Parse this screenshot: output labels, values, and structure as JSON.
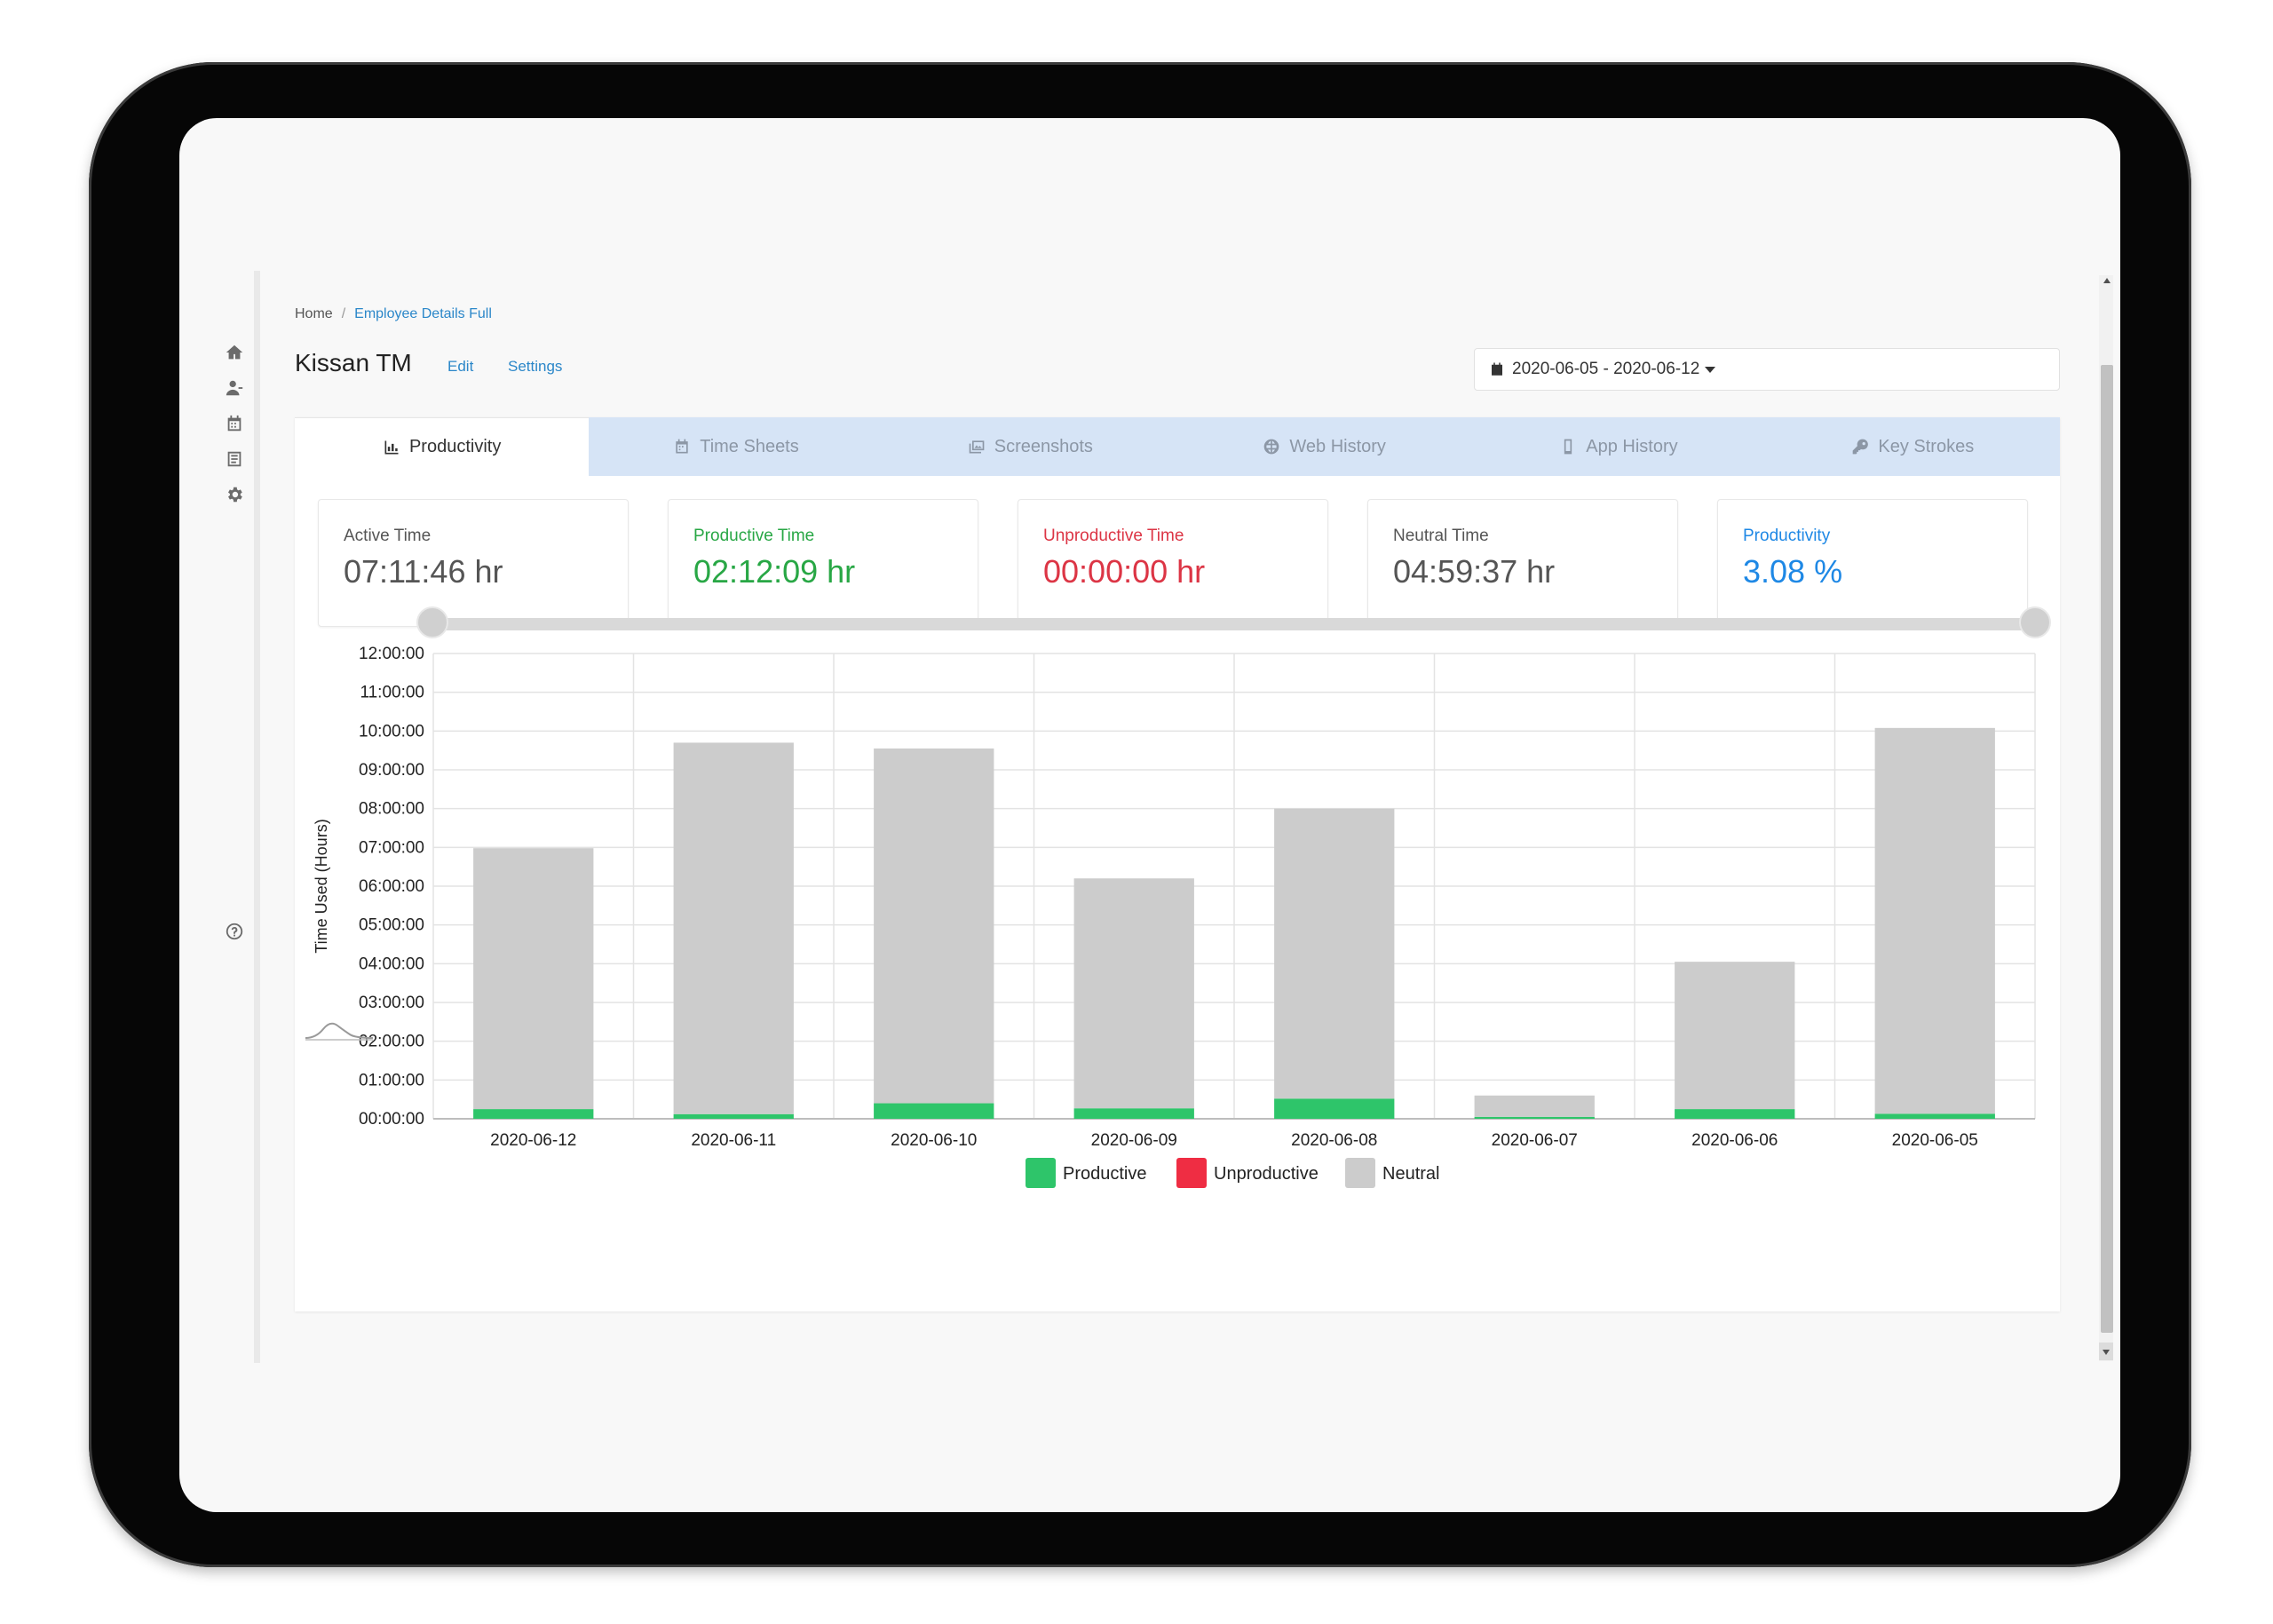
{
  "breadcrumb": {
    "home": "Home",
    "separator": "/",
    "current": "Employee Details Full"
  },
  "employee": {
    "name": "Kissan TM",
    "edit_label": "Edit",
    "settings_label": "Settings"
  },
  "date_range": {
    "icon": "calendar-icon",
    "label": "2020-06-05 - 2020-06-12"
  },
  "sidebar": {
    "items": [
      {
        "icon": "home-icon"
      },
      {
        "icon": "users-icon"
      },
      {
        "icon": "calendar-icon"
      },
      {
        "icon": "report-icon"
      },
      {
        "icon": "gear-icon"
      }
    ],
    "help_icon": "help-icon"
  },
  "tabs": [
    {
      "label": "Productivity",
      "icon": "bar-chart-icon",
      "active": true
    },
    {
      "label": "Time Sheets",
      "icon": "calendar-icon",
      "active": false
    },
    {
      "label": "Screenshots",
      "icon": "images-icon",
      "active": false
    },
    {
      "label": "Web History",
      "icon": "globe-icon",
      "active": false
    },
    {
      "label": "App History",
      "icon": "mobile-icon",
      "active": false
    },
    {
      "label": "Key Strokes",
      "icon": "key-icon",
      "active": false
    }
  ],
  "stats": [
    {
      "label": "Active Time",
      "value": "07:11:46 hr",
      "color": "#555555"
    },
    {
      "label": "Productive Time",
      "value": "02:12:09 hr",
      "color": "#28a745"
    },
    {
      "label": "Unproductive Time",
      "value": "00:00:00 hr",
      "color": "#dc3545"
    },
    {
      "label": "Neutral Time",
      "value": "04:59:37 hr",
      "color": "#555555"
    },
    {
      "label": "Productivity",
      "value": "3.08 %",
      "color": "#1e88e5"
    }
  ],
  "chart_data": {
    "type": "bar",
    "stacked": true,
    "title": "",
    "xlabel": "",
    "ylabel": "Time Used (Hours)",
    "ylim": [
      0,
      12
    ],
    "yticks": [
      "00:00:00",
      "01:00:00",
      "02:00:00",
      "03:00:00",
      "04:00:00",
      "05:00:00",
      "06:00:00",
      "07:00:00",
      "08:00:00",
      "09:00:00",
      "10:00:00",
      "11:00:00",
      "12:00:00"
    ],
    "categories": [
      "2020-06-12",
      "2020-06-11",
      "2020-06-10",
      "2020-06-09",
      "2020-06-08",
      "2020-06-07",
      "2020-06-06",
      "2020-06-05"
    ],
    "series": [
      {
        "name": "Productive",
        "color": "#2ec56a",
        "values": [
          0.25,
          0.12,
          0.4,
          0.27,
          0.52,
          0.05,
          0.25,
          0.13
        ]
      },
      {
        "name": "Unproductive",
        "color": "#ef2d43",
        "values": [
          0,
          0,
          0,
          0,
          0,
          0,
          0,
          0
        ]
      },
      {
        "name": "Neutral",
        "color": "#cccccc",
        "values": [
          6.73,
          9.58,
          9.15,
          5.93,
          7.48,
          0.55,
          3.8,
          9.95
        ]
      }
    ],
    "grid": true,
    "legend": "bottom-center"
  }
}
